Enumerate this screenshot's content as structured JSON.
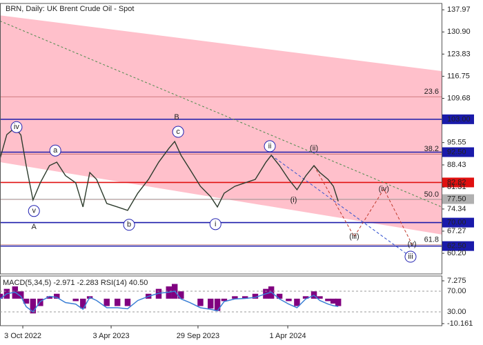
{
  "chart_data": {
    "type": "line",
    "title": "BRN, Daily:  UK Brent Crude Oil - Spot",
    "xlim": [
      0,
      910
    ],
    "xticks": [
      {
        "value": 47,
        "label": "3 Oct 2022"
      },
      {
        "value": 229,
        "label": "3 Apr 2023"
      },
      {
        "value": 408,
        "label": "29 Sep 2023"
      },
      {
        "value": 593,
        "label": "1 Apr 2024"
      }
    ],
    "ylim": [
      53.6,
      140
    ],
    "yticks": [
      137.97,
      {
        "value": 130.9,
        "label": "130.90"
      },
      123.83,
      116.75,
      109.68,
      95.55,
      88.43,
      81.31,
      74.34,
      67.27,
      {
        "value": 60.2,
        "label": "60.20"
      }
    ],
    "x": [
      0,
      14,
      31,
      43,
      54,
      68,
      83,
      102,
      117,
      135,
      156,
      171,
      185,
      199,
      220,
      242,
      263,
      284,
      306,
      327,
      348,
      360,
      373,
      391,
      413,
      434,
      448,
      462,
      484,
      505,
      526,
      548,
      559,
      576,
      595,
      612,
      630,
      647,
      659,
      676,
      687,
      697
    ],
    "series": [
      {
        "color": "#2b3a2b",
        "values": [
          90.4,
          98.1,
          100.3,
          98,
          88.2,
          77.2,
          82.7,
          88.2,
          89.3,
          85,
          82.7,
          75,
          86,
          83.8,
          76.1,
          75,
          73.9,
          79.4,
          83.8,
          89.3,
          93.7,
          95.9,
          91.5,
          87.1,
          81.6,
          78.3,
          75,
          79.4,
          81.6,
          82.7,
          83.8,
          89.3,
          91.5,
          88.2,
          83.8,
          80.5,
          84.9,
          88.2,
          86,
          83.8,
          81.6,
          76.8
        ]
      }
    ],
    "channel": {
      "color": "#ffc0cb",
      "upper": {
        "x": [
          0,
          910
        ],
        "values": [
          136.2,
          118.4
        ]
      },
      "lower": {
        "x": [
          0,
          910
        ],
        "values": [
          89.3,
          66.2
        ]
      }
    },
    "trendline": {
      "color": "#4a8a4a",
      "x": [
        0,
        910
      ],
      "values": [
        134.4,
        75
      ]
    },
    "projections": [
      {
        "color": "#c0392b",
        "x": [
          647,
          730,
          791,
          849
        ],
        "values": [
          88.2,
          65.5,
          80.7,
          63.1
        ]
      },
      {
        "color": "#3050d0",
        "x": [
          559,
          846
        ],
        "values": [
          91.5,
          59.1
        ]
      }
    ],
    "levels": [
      {
        "value": 103,
        "label": "103.00",
        "color": "#1a1aaa"
      },
      {
        "value": 92.5,
        "label": "92.50",
        "color": "#1a1aaa"
      },
      {
        "value": 82.82,
        "label": "82.82",
        "color": "#e01010"
      },
      {
        "value": 77.5,
        "label": "77.50",
        "color": "#b0b0b0"
      },
      {
        "value": 70,
        "label": "70.00",
        "color": "#1a1aaa"
      },
      {
        "value": 62.5,
        "label": "62.50",
        "color": "#1a1aaa"
      }
    ],
    "fib": [
      {
        "label": "23.6",
        "price": 110.2
      },
      {
        "label": "38.2",
        "price": 91.9
      },
      {
        "label": "50.0",
        "price": 77.4
      },
      {
        "label": "61.8",
        "price": 62.9
      }
    ],
    "annotations": [
      {
        "text": "iv",
        "day": 34,
        "price": 100.5,
        "color": "#2020b0",
        "circled": true
      },
      {
        "text": "a",
        "day": 114,
        "price": 93,
        "color": "#2020b0",
        "circled": true
      },
      {
        "text": "v",
        "day": 70,
        "price": 73.7,
        "color": "#2020b0",
        "circled": true
      },
      {
        "text": "A",
        "day": 70,
        "price": 68.6,
        "color": "#a04040",
        "circled": false
      },
      {
        "text": "b",
        "day": 266,
        "price": 69.3,
        "color": "#2020b0",
        "circled": true
      },
      {
        "text": "B",
        "day": 364,
        "price": 103.6,
        "color": "#a04040",
        "circled": false
      },
      {
        "text": "c",
        "day": 367,
        "price": 99,
        "color": "#2020b0",
        "circled": true
      },
      {
        "text": "i",
        "day": 444,
        "price": 69.5,
        "color": "#2020b0",
        "circled": true
      },
      {
        "text": "ii",
        "day": 556,
        "price": 94.4,
        "color": "#2020b0",
        "circled": true
      },
      {
        "text": "(ii)",
        "day": 647,
        "price": 93.7,
        "color": "#d02020",
        "circled": false
      },
      {
        "text": "(i)",
        "day": 605,
        "price": 77.2,
        "color": "#d02020",
        "circled": false
      },
      {
        "text": "(iii)",
        "day": 730,
        "price": 65.5,
        "color": "#d02020",
        "circled": false
      },
      {
        "text": "(iv)",
        "day": 791,
        "price": 80.7,
        "color": "#d02020",
        "circled": false
      },
      {
        "text": "(v)",
        "day": 849,
        "price": 63.1,
        "color": "#d02020",
        "circled": false
      },
      {
        "text": "iii",
        "day": 846,
        "price": 59.1,
        "color": "#2020b0",
        "circled": true
      }
    ],
    "indicator": {
      "title": "MACD(5,34,5) -2.971 -2.283 RSI(14) 40.50",
      "macd_color": "#800080",
      "rsi_color": "#3a7fd5",
      "macd_ylim": [
        -11,
        9.24
      ],
      "macd_yticks": [
        7.275,
        -10.161
      ],
      "rsi_ylim": [
        3.3,
        99.3
      ],
      "rsi_yticks": [
        {
          "value": 70,
          "label": "70.00"
        },
        {
          "value": 30,
          "label": "30.00"
        }
      ],
      "macd": [
        2,
        4,
        5,
        3,
        -2,
        -6,
        -3,
        1,
        2,
        0,
        -1,
        -4,
        1,
        0,
        -3,
        -3,
        -3,
        0,
        2,
        4,
        5,
        6,
        3,
        0,
        -3,
        -4,
        -5,
        -1,
        1,
        1,
        2,
        4,
        5,
        2,
        -1,
        -3,
        1,
        3,
        1,
        -1,
        -2,
        -3
      ],
      "rsi": [
        55,
        65,
        68,
        60,
        40,
        30,
        50,
        60,
        58,
        48,
        45,
        35,
        58,
        52,
        38,
        38,
        36,
        52,
        60,
        66,
        68,
        70,
        55,
        48,
        38,
        35,
        32,
        50,
        55,
        56,
        58,
        65,
        68,
        55,
        45,
        38,
        55,
        62,
        52,
        45,
        42,
        40.5
      ]
    }
  }
}
